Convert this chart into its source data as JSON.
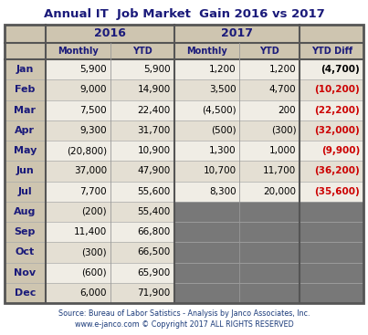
{
  "title": "Annual IT  Job Market  Gain 2016 vs 2017",
  "months": [
    "Jan",
    "Feb",
    "Mar",
    "Apr",
    "May",
    "Jun",
    "Jul",
    "Aug",
    "Sep",
    "Oct",
    "Nov",
    "Dec"
  ],
  "data_2016_monthly": [
    "5,900",
    "9,000",
    "7,500",
    "9,300",
    "(20,800)",
    "37,000",
    "7,700",
    "(200)",
    "11,400",
    "(300)",
    "(600)",
    "6,000"
  ],
  "data_2016_ytd": [
    "5,900",
    "14,900",
    "22,400",
    "31,700",
    "10,900",
    "47,900",
    "55,600",
    "55,400",
    "66,800",
    "66,500",
    "65,900",
    "71,900"
  ],
  "data_2017_monthly": [
    "1,200",
    "3,500",
    "(4,500)",
    "(500)",
    "1,300",
    "10,700",
    "8,300",
    "",
    "",
    "",
    "",
    ""
  ],
  "data_2017_ytd": [
    "1,200",
    "4,700",
    "200",
    "(300)",
    "1,000",
    "11,700",
    "20,000",
    "",
    "",
    "",
    "",
    ""
  ],
  "data_ytd_diff": [
    "(4,700)",
    "(10,200)",
    "(22,200)",
    "(32,000)",
    "(9,900)",
    "(36,200)",
    "(35,600)",
    "",
    "",
    "",
    "",
    ""
  ],
  "ytd_diff_red": [
    false,
    true,
    true,
    true,
    true,
    true,
    true,
    false,
    false,
    false,
    false,
    false
  ],
  "source_line1": "Source: Bureau of Labor Satistics - Analysis by Janco Associates, Inc.",
  "source_line2": "www.e-janco.com © Copyright 2017 ALL RIGHTS RESERVED",
  "header_bg": "#cec5b0",
  "row_bg_odd": "#f0ede5",
  "row_bg_even": "#e4dfd3",
  "month_col_bg": "#cec5b0",
  "gray_fill": "#787878",
  "title_color": "#1a1a7a",
  "source_color": "#1a3a7a",
  "ytd_diff_red_color": "#cc0000",
  "ytd_diff_black_color": "#000000",
  "border_color": "#555555",
  "num_color": "#000000"
}
